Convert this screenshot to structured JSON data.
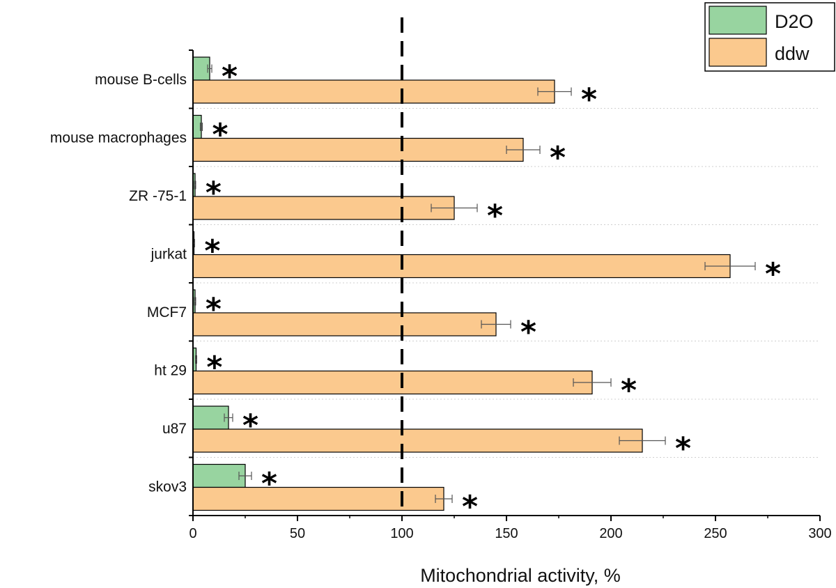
{
  "chart_data": {
    "type": "bar",
    "orientation": "horizontal",
    "title": "",
    "xlabel": "Mitochondrial activity, %",
    "ylabel": "",
    "xlim": [
      0,
      300
    ],
    "xticks": [
      0,
      50,
      100,
      150,
      200,
      250,
      300
    ],
    "reference_line": {
      "x": 100,
      "style": "dashed"
    },
    "categories": [
      "mouse B-cells",
      "mouse macrophages",
      "ZR -75-1",
      "jurkat",
      "MCF7",
      "ht 29",
      "u87",
      "skov3"
    ],
    "series": [
      {
        "name": "D2O",
        "color": "#98d4a0",
        "values": [
          8,
          4,
          1,
          0.5,
          1,
          1.5,
          17,
          25
        ],
        "errors": [
          1,
          0.5,
          0.3,
          0.3,
          0.3,
          0.3,
          2,
          3
        ],
        "markers": [
          "*",
          "*",
          "*",
          "*",
          "*",
          "*",
          "*",
          "*"
        ]
      },
      {
        "name": "ddw",
        "color": "#fbc98e",
        "values": [
          173,
          158,
          125,
          257,
          145,
          191,
          215,
          120
        ],
        "errors": [
          8,
          8,
          11,
          12,
          7,
          9,
          11,
          4
        ],
        "markers": [
          "*",
          "*",
          "*",
          "*",
          "*",
          "*",
          "*",
          "*"
        ]
      }
    ],
    "legend": {
      "placement": "top-right",
      "entries": [
        "D2O",
        "ddw"
      ]
    },
    "grid": {
      "x": false,
      "y": true,
      "y_style": "dotted"
    }
  }
}
